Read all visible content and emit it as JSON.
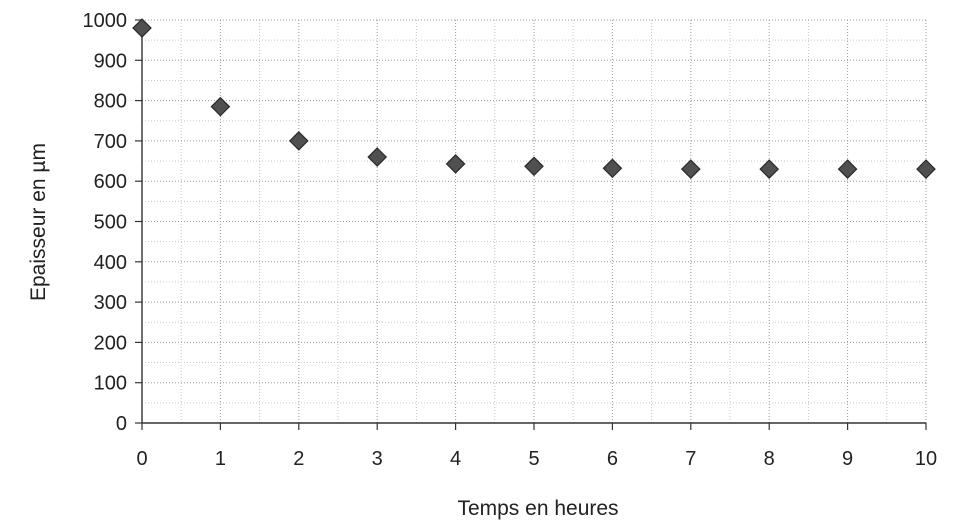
{
  "chart_data": {
    "type": "scatter",
    "xlabel": "Temps en heures",
    "ylabel": "Epaisseur en µm",
    "xlim": [
      0,
      10
    ],
    "ylim": [
      0,
      1000
    ],
    "x_ticks": [
      "0",
      "1",
      "2",
      "3",
      "4",
      "5",
      "6",
      "7",
      "8",
      "9",
      "10"
    ],
    "y_ticks": [
      "0",
      "100",
      "200",
      "300",
      "400",
      "500",
      "600",
      "700",
      "800",
      "900",
      "1000"
    ],
    "grid": true,
    "marker": "diamond",
    "marker_color": "#505050",
    "series": [
      {
        "x": [
          0,
          1,
          2,
          3,
          4,
          5,
          6,
          7,
          8,
          9,
          10
        ],
        "y": [
          980,
          785,
          700,
          660,
          643,
          637,
          632,
          630,
          630,
          630,
          630
        ]
      }
    ]
  }
}
